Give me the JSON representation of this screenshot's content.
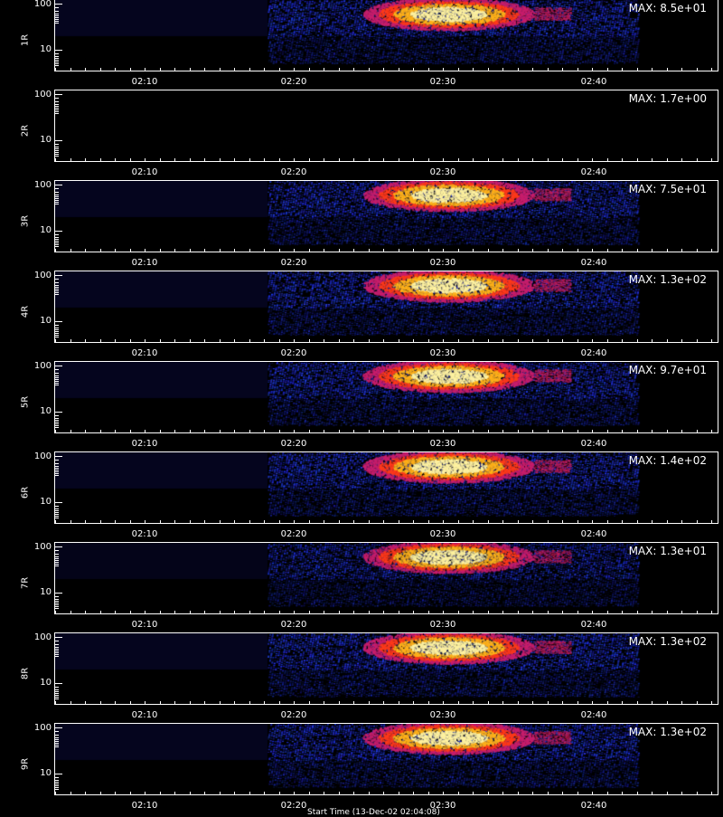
{
  "chart_data": {
    "type": "heatmap",
    "x_tick_labels": [
      "02:10",
      "02:20",
      "02:30",
      "02:40"
    ],
    "y_tick_labels": [
      "100",
      "10"
    ],
    "y_scale": "log",
    "colormap": [
      "#000000",
      "#0a0a60",
      "#1a2bff",
      "#c81e6b",
      "#ff3a1a",
      "#ffb21a",
      "#fff3a0"
    ],
    "panels": [
      {
        "label": "1R",
        "max_label": "MAX: 8.5e+01",
        "intensity": 1.0
      },
      {
        "label": "2R",
        "max_label": "MAX: 1.7e+00",
        "intensity": 0.0
      },
      {
        "label": "3R",
        "max_label": "MAX: 7.5e+01",
        "intensity": 1.0
      },
      {
        "label": "4R",
        "max_label": "MAX: 1.3e+02",
        "intensity": 1.0
      },
      {
        "label": "5R",
        "max_label": "MAX: 9.7e+01",
        "intensity": 1.0
      },
      {
        "label": "6R",
        "max_label": "MAX: 1.4e+02",
        "intensity": 1.0
      },
      {
        "label": "7R",
        "max_label": "MAX: 1.3e+01",
        "intensity": 0.85
      },
      {
        "label": "8R",
        "max_label": "MAX: 1.3e+02",
        "intensity": 1.0
      },
      {
        "label": "9R",
        "max_label": "MAX: 1.3e+02",
        "intensity": 1.0
      }
    ]
  },
  "footer": {
    "caption": "Start Time (13-Dec-02 02:04:08)"
  }
}
